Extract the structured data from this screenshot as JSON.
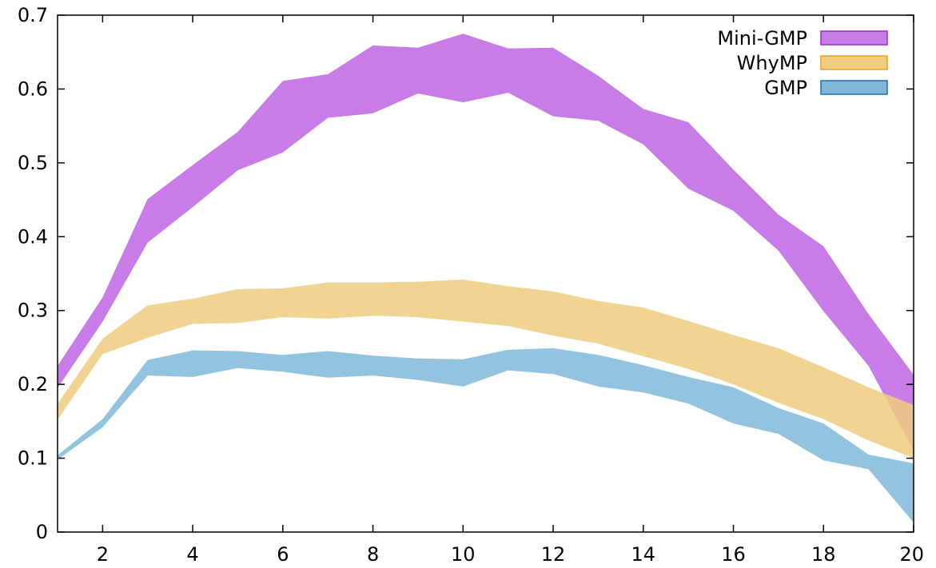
{
  "chart_data": {
    "type": "area",
    "title": "",
    "xlabel": "",
    "ylabel": "",
    "xlim": [
      1,
      20
    ],
    "ylim": [
      0,
      0.7
    ],
    "x_ticks": [
      2,
      4,
      6,
      8,
      10,
      12,
      14,
      16,
      18,
      20
    ],
    "y_ticks": [
      0,
      0.1,
      0.2,
      0.3,
      0.4,
      0.5,
      0.6,
      0.7
    ],
    "grid": false,
    "legend_position": "top-right",
    "x": [
      1,
      2,
      3,
      4,
      5,
      6,
      7,
      8,
      9,
      10,
      11,
      12,
      13,
      14,
      15,
      16,
      17,
      18,
      19,
      20
    ],
    "series": [
      {
        "name": "Mini-GMP",
        "color": "#c77ce8",
        "border_color": "#9a2cc4",
        "lower": [
          0.195,
          0.285,
          0.392,
          0.44,
          0.49,
          0.514,
          0.561,
          0.567,
          0.594,
          0.582,
          0.595,
          0.563,
          0.557,
          0.525,
          0.465,
          0.435,
          0.381,
          0.299,
          0.225,
          0.11
        ],
        "upper": [
          0.225,
          0.318,
          0.451,
          0.497,
          0.542,
          0.611,
          0.62,
          0.659,
          0.656,
          0.675,
          0.655,
          0.656,
          0.618,
          0.573,
          0.555,
          0.491,
          0.43,
          0.387,
          0.295,
          0.213
        ]
      },
      {
        "name": "WhyMP",
        "color": "#f0cd7f",
        "border_color": "#e8a020",
        "lower": [
          0.152,
          0.241,
          0.263,
          0.282,
          0.283,
          0.291,
          0.289,
          0.293,
          0.291,
          0.285,
          0.279,
          0.266,
          0.255,
          0.238,
          0.221,
          0.2,
          0.175,
          0.153,
          0.124,
          0.1
        ],
        "upper": [
          0.174,
          0.262,
          0.307,
          0.316,
          0.329,
          0.33,
          0.338,
          0.338,
          0.339,
          0.342,
          0.333,
          0.326,
          0.313,
          0.304,
          0.286,
          0.267,
          0.249,
          0.223,
          0.196,
          0.172
        ]
      },
      {
        "name": "GMP",
        "color": "#7fb8d9",
        "border_color": "#1f6fa8",
        "lower": [
          0.098,
          0.142,
          0.212,
          0.21,
          0.222,
          0.217,
          0.209,
          0.212,
          0.206,
          0.197,
          0.219,
          0.214,
          0.197,
          0.189,
          0.174,
          0.147,
          0.133,
          0.097,
          0.085,
          0.013
        ],
        "upper": [
          0.104,
          0.153,
          0.233,
          0.246,
          0.245,
          0.24,
          0.245,
          0.239,
          0.235,
          0.234,
          0.247,
          0.249,
          0.24,
          0.226,
          0.21,
          0.196,
          0.168,
          0.147,
          0.105,
          0.093
        ]
      }
    ]
  }
}
